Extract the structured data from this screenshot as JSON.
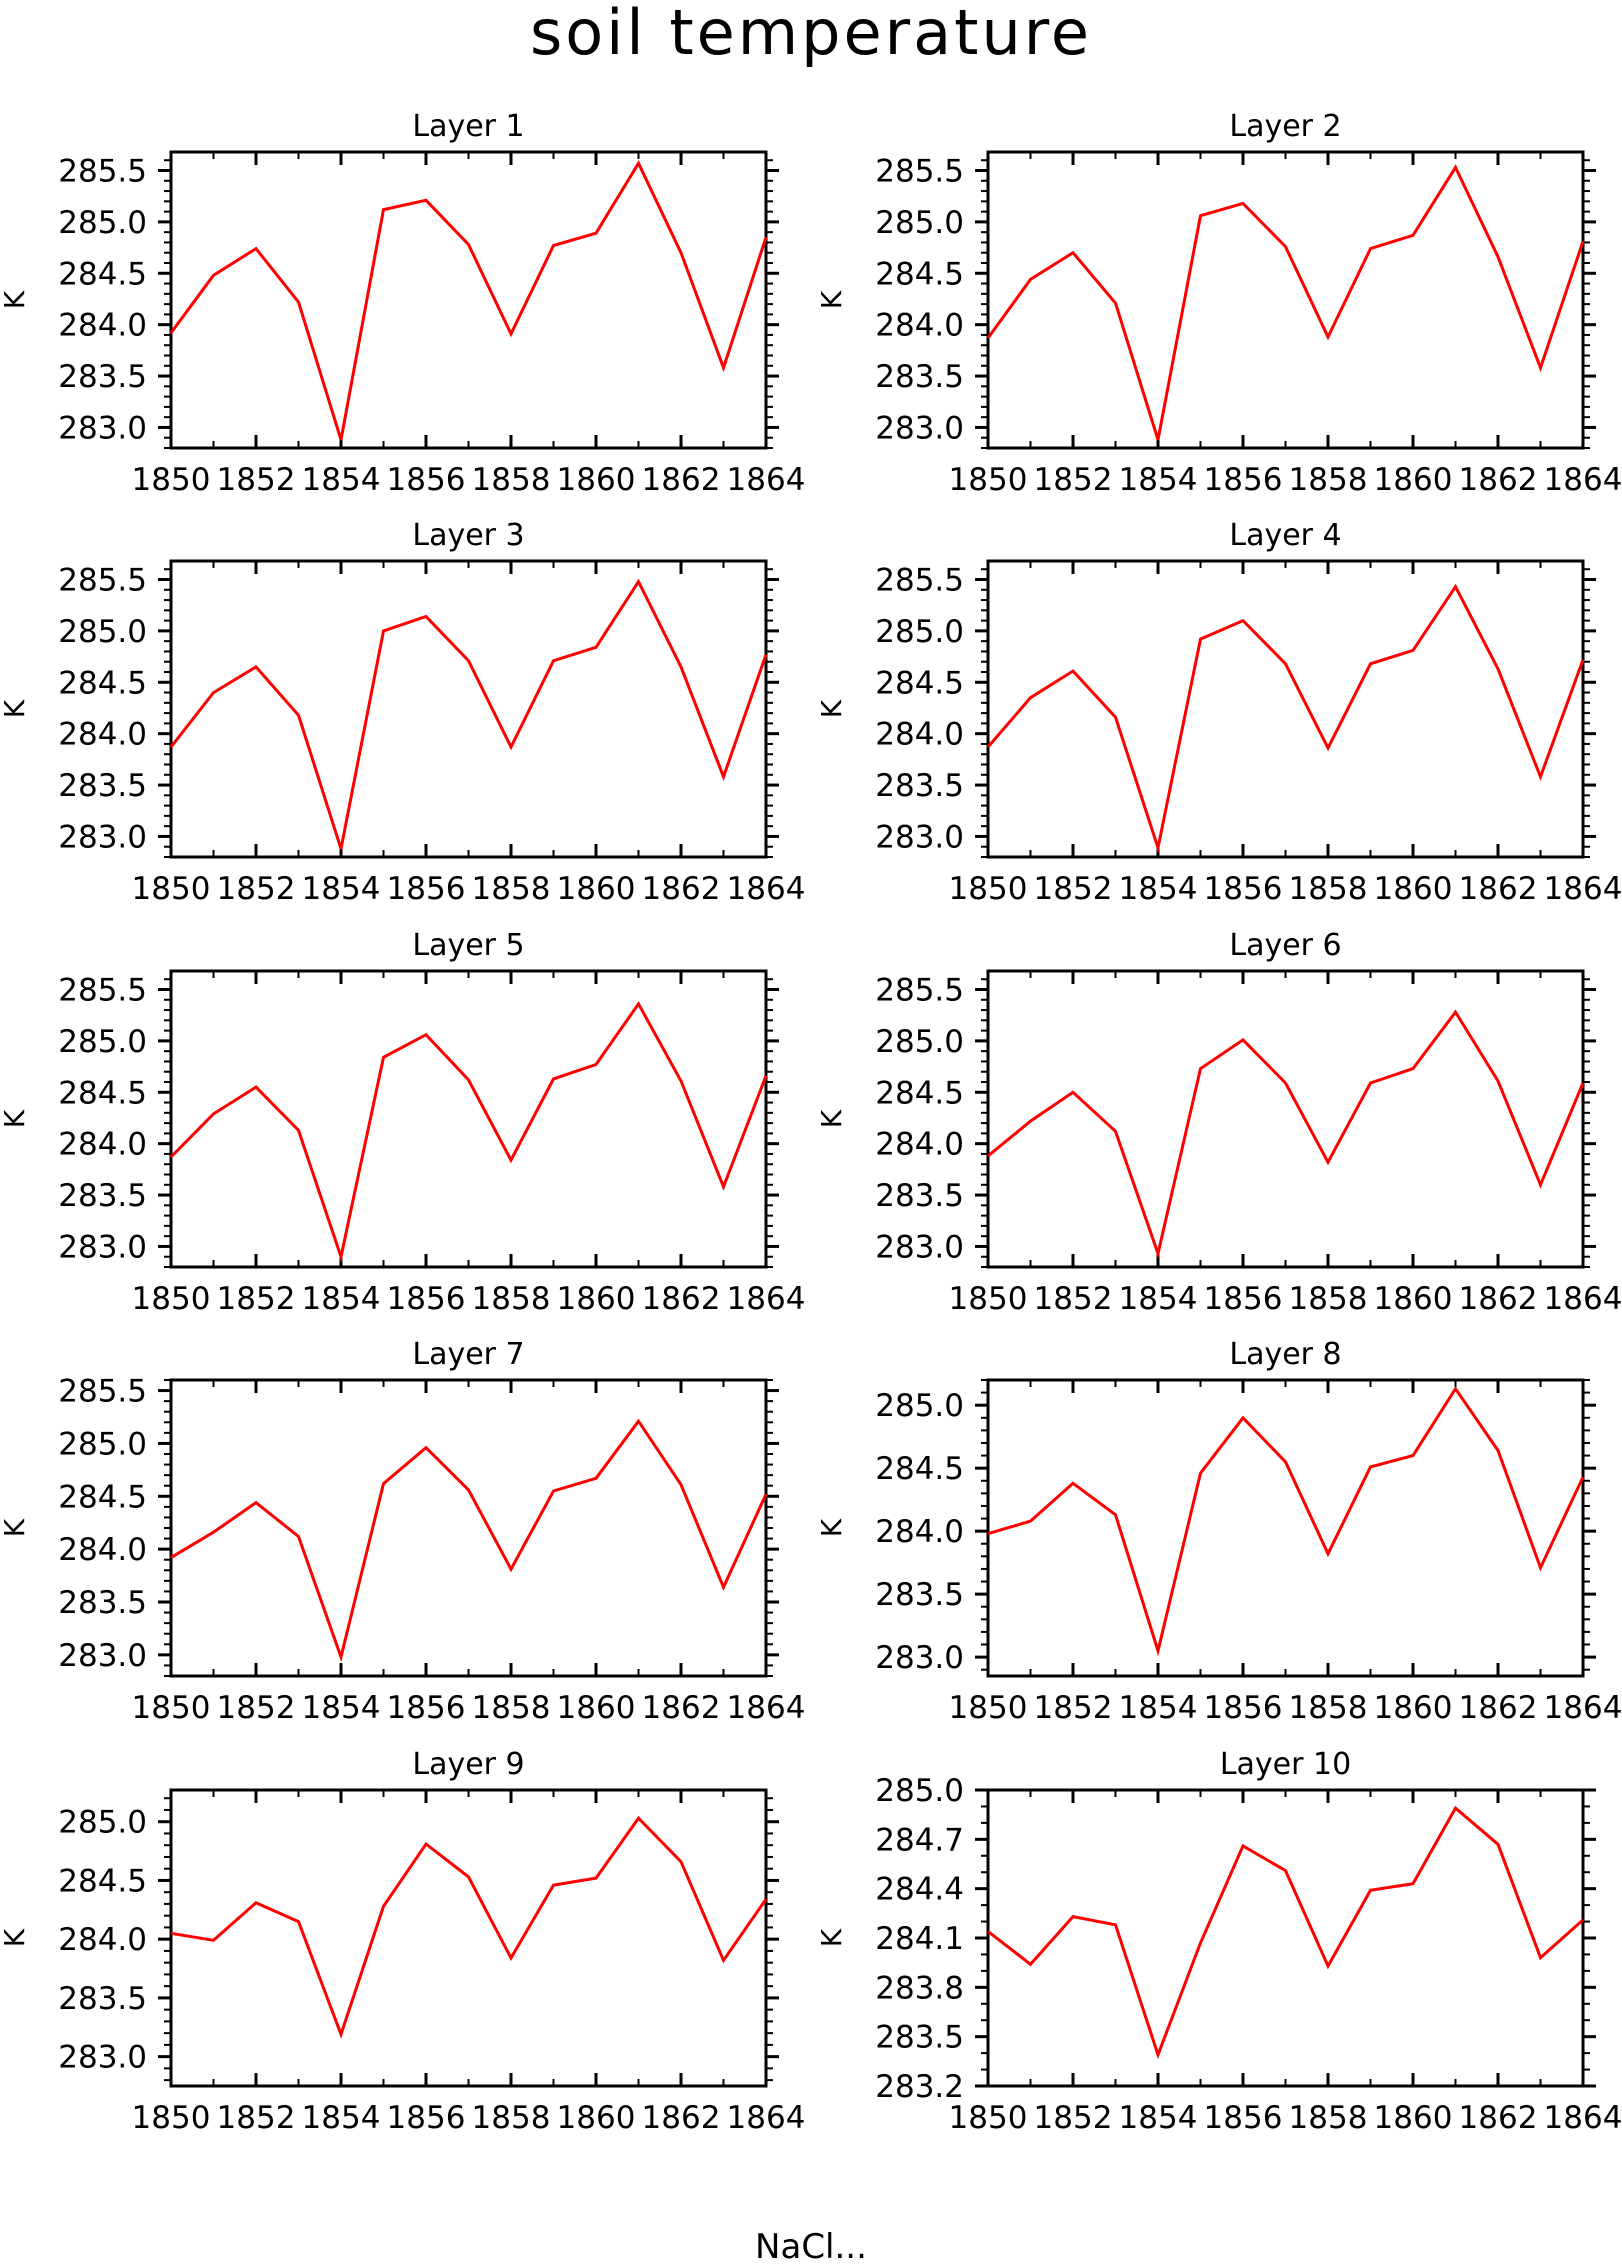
{
  "figure": {
    "title": "soil temperature",
    "footer_text": "NaCl..."
  },
  "chart_data": [
    {
      "type": "line",
      "title": "Layer 1",
      "xlabel": "",
      "ylabel": "K",
      "x": [
        1850,
        1851,
        1852,
        1853,
        1854,
        1855,
        1856,
        1857,
        1858,
        1859,
        1860,
        1861,
        1862,
        1863,
        1864
      ],
      "xticks": [
        "1850",
        "1852",
        "1854",
        "1856",
        "1858",
        "1860",
        "1862",
        "1864"
      ],
      "xlim": [
        1850,
        1864
      ],
      "yticks": [
        "283.0",
        "283.5",
        "284.0",
        "284.5",
        "285.0",
        "285.5"
      ],
      "ylim": [
        282.8,
        285.68
      ],
      "ymajor_step": 0.5,
      "yminor_step": 0.1,
      "series": [
        {
          "color": "#ff0000",
          "values": [
            283.92,
            284.48,
            284.74,
            284.22,
            282.88,
            285.12,
            285.21,
            284.78,
            283.91,
            284.77,
            284.89,
            285.57,
            284.7,
            283.58,
            284.85
          ]
        }
      ]
    },
    {
      "type": "line",
      "title": "Layer 2",
      "xlabel": "",
      "ylabel": "K",
      "x": [
        1850,
        1851,
        1852,
        1853,
        1854,
        1855,
        1856,
        1857,
        1858,
        1859,
        1860,
        1861,
        1862,
        1863,
        1864
      ],
      "xticks": [
        "1850",
        "1852",
        "1854",
        "1856",
        "1858",
        "1860",
        "1862",
        "1864"
      ],
      "xlim": [
        1850,
        1864
      ],
      "yticks": [
        "283.0",
        "283.5",
        "284.0",
        "284.5",
        "285.0",
        "285.5"
      ],
      "ylim": [
        282.8,
        285.68
      ],
      "ymajor_step": 0.5,
      "yminor_step": 0.1,
      "series": [
        {
          "color": "#ff0000",
          "values": [
            283.87,
            284.44,
            284.7,
            284.21,
            282.88,
            285.06,
            285.18,
            284.76,
            283.88,
            284.74,
            284.87,
            285.53,
            284.66,
            283.58,
            284.81
          ]
        }
      ]
    },
    {
      "type": "line",
      "title": "Layer 3",
      "xlabel": "",
      "ylabel": "K",
      "x": [
        1850,
        1851,
        1852,
        1853,
        1854,
        1855,
        1856,
        1857,
        1858,
        1859,
        1860,
        1861,
        1862,
        1863,
        1864
      ],
      "xticks": [
        "1850",
        "1852",
        "1854",
        "1856",
        "1858",
        "1860",
        "1862",
        "1864"
      ],
      "xlim": [
        1850,
        1864
      ],
      "yticks": [
        "283.0",
        "283.5",
        "284.0",
        "284.5",
        "285.0",
        "285.5"
      ],
      "ylim": [
        282.8,
        285.68
      ],
      "ymajor_step": 0.5,
      "yminor_step": 0.1,
      "series": [
        {
          "color": "#ff0000",
          "values": [
            283.87,
            284.4,
            284.65,
            284.18,
            282.88,
            285.0,
            285.14,
            284.71,
            283.87,
            284.71,
            284.84,
            285.48,
            284.65,
            283.58,
            284.77
          ]
        }
      ]
    },
    {
      "type": "line",
      "title": "Layer 4",
      "xlabel": "",
      "ylabel": "K",
      "x": [
        1850,
        1851,
        1852,
        1853,
        1854,
        1855,
        1856,
        1857,
        1858,
        1859,
        1860,
        1861,
        1862,
        1863,
        1864
      ],
      "xticks": [
        "1850",
        "1852",
        "1854",
        "1856",
        "1858",
        "1860",
        "1862",
        "1864"
      ],
      "xlim": [
        1850,
        1864
      ],
      "yticks": [
        "283.0",
        "283.5",
        "284.0",
        "284.5",
        "285.0",
        "285.5"
      ],
      "ylim": [
        282.8,
        285.68
      ],
      "ymajor_step": 0.5,
      "yminor_step": 0.1,
      "series": [
        {
          "color": "#ff0000",
          "values": [
            283.87,
            284.35,
            284.61,
            284.16,
            282.89,
            284.92,
            285.1,
            284.68,
            283.86,
            284.68,
            284.81,
            285.43,
            284.63,
            283.58,
            284.72
          ]
        }
      ]
    },
    {
      "type": "line",
      "title": "Layer 5",
      "xlabel": "",
      "ylabel": "K",
      "x": [
        1850,
        1851,
        1852,
        1853,
        1854,
        1855,
        1856,
        1857,
        1858,
        1859,
        1860,
        1861,
        1862,
        1863,
        1864
      ],
      "xticks": [
        "1850",
        "1852",
        "1854",
        "1856",
        "1858",
        "1860",
        "1862",
        "1864"
      ],
      "xlim": [
        1850,
        1864
      ],
      "yticks": [
        "283.0",
        "283.5",
        "284.0",
        "284.5",
        "285.0",
        "285.5"
      ],
      "ylim": [
        282.8,
        285.68
      ],
      "ymajor_step": 0.5,
      "yminor_step": 0.1,
      "series": [
        {
          "color": "#ff0000",
          "values": [
            283.87,
            284.29,
            284.55,
            284.13,
            282.9,
            284.84,
            285.06,
            284.62,
            283.84,
            284.63,
            284.77,
            285.36,
            284.61,
            283.58,
            284.66
          ]
        }
      ]
    },
    {
      "type": "line",
      "title": "Layer 6",
      "xlabel": "",
      "ylabel": "K",
      "x": [
        1850,
        1851,
        1852,
        1853,
        1854,
        1855,
        1856,
        1857,
        1858,
        1859,
        1860,
        1861,
        1862,
        1863,
        1864
      ],
      "xticks": [
        "1850",
        "1852",
        "1854",
        "1856",
        "1858",
        "1860",
        "1862",
        "1864"
      ],
      "xlim": [
        1850,
        1864
      ],
      "yticks": [
        "283.0",
        "283.5",
        "284.0",
        "284.5",
        "285.0",
        "285.5"
      ],
      "ylim": [
        282.8,
        285.68
      ],
      "ymajor_step": 0.5,
      "yminor_step": 0.1,
      "series": [
        {
          "color": "#ff0000",
          "values": [
            283.88,
            284.22,
            284.5,
            284.12,
            282.93,
            284.73,
            285.01,
            284.59,
            283.82,
            284.59,
            284.73,
            285.28,
            284.61,
            283.6,
            284.59
          ]
        }
      ]
    },
    {
      "type": "line",
      "title": "Layer 7",
      "xlabel": "",
      "ylabel": "K",
      "x": [
        1850,
        1851,
        1852,
        1853,
        1854,
        1855,
        1856,
        1857,
        1858,
        1859,
        1860,
        1861,
        1862,
        1863,
        1864
      ],
      "xticks": [
        "1850",
        "1852",
        "1854",
        "1856",
        "1858",
        "1860",
        "1862",
        "1864"
      ],
      "xlim": [
        1850,
        1864
      ],
      "yticks": [
        "283.0",
        "283.5",
        "284.0",
        "284.5",
        "285.0",
        "285.5"
      ],
      "ylim": [
        282.8,
        285.6
      ],
      "ymajor_step": 0.5,
      "yminor_step": 0.1,
      "series": [
        {
          "color": "#ff0000",
          "values": [
            283.92,
            284.16,
            284.44,
            284.12,
            282.98,
            284.62,
            284.96,
            284.56,
            283.81,
            284.55,
            284.67,
            285.21,
            284.61,
            283.64,
            284.52
          ]
        }
      ]
    },
    {
      "type": "line",
      "title": "Layer 8",
      "xlabel": "",
      "ylabel": "K",
      "x": [
        1850,
        1851,
        1852,
        1853,
        1854,
        1855,
        1856,
        1857,
        1858,
        1859,
        1860,
        1861,
        1862,
        1863,
        1864
      ],
      "xticks": [
        "1850",
        "1852",
        "1854",
        "1856",
        "1858",
        "1860",
        "1862",
        "1864"
      ],
      "xlim": [
        1850,
        1864
      ],
      "yticks": [
        "283.0",
        "283.5",
        "284.0",
        "284.5",
        "285.0"
      ],
      "ylim": [
        282.85,
        285.2
      ],
      "ymajor_step": 0.5,
      "yminor_step": 0.1,
      "series": [
        {
          "color": "#ff0000",
          "values": [
            283.98,
            284.08,
            284.38,
            284.13,
            283.05,
            284.46,
            284.9,
            284.55,
            283.82,
            284.51,
            284.6,
            285.13,
            284.64,
            283.71,
            284.43
          ]
        }
      ]
    },
    {
      "type": "line",
      "title": "Layer 9",
      "xlabel": "",
      "ylabel": "K",
      "x": [
        1850,
        1851,
        1852,
        1853,
        1854,
        1855,
        1856,
        1857,
        1858,
        1859,
        1860,
        1861,
        1862,
        1863,
        1864
      ],
      "xticks": [
        "1850",
        "1852",
        "1854",
        "1856",
        "1858",
        "1860",
        "1862",
        "1864"
      ],
      "xlim": [
        1850,
        1864
      ],
      "yticks": [
        "283.0",
        "283.5",
        "284.0",
        "284.5",
        "285.0"
      ],
      "ylim": [
        282.75,
        285.27
      ],
      "ymajor_step": 0.5,
      "yminor_step": 0.1,
      "series": [
        {
          "color": "#ff0000",
          "values": [
            284.05,
            283.99,
            284.31,
            284.15,
            283.19,
            284.28,
            284.81,
            284.53,
            283.84,
            284.46,
            284.52,
            285.03,
            284.66,
            283.82,
            284.34
          ]
        }
      ]
    },
    {
      "type": "line",
      "title": "Layer 10",
      "xlabel": "",
      "ylabel": "K",
      "x": [
        1850,
        1851,
        1852,
        1853,
        1854,
        1855,
        1856,
        1857,
        1858,
        1859,
        1860,
        1861,
        1862,
        1863,
        1864
      ],
      "xticks": [
        "1850",
        "1852",
        "1854",
        "1856",
        "1858",
        "1860",
        "1862",
        "1864"
      ],
      "xlim": [
        1850,
        1864
      ],
      "yticks": [
        "283.2",
        "283.5",
        "283.8",
        "284.1",
        "284.4",
        "284.7",
        "285.0"
      ],
      "ylim": [
        283.2,
        285.0
      ],
      "ymajor_step": 0.3,
      "yminor_step": 0.1,
      "series": [
        {
          "color": "#ff0000",
          "values": [
            284.14,
            283.94,
            284.23,
            284.18,
            283.39,
            284.07,
            284.66,
            284.51,
            283.93,
            284.39,
            284.43,
            284.89,
            284.67,
            283.98,
            284.21
          ]
        }
      ]
    }
  ]
}
